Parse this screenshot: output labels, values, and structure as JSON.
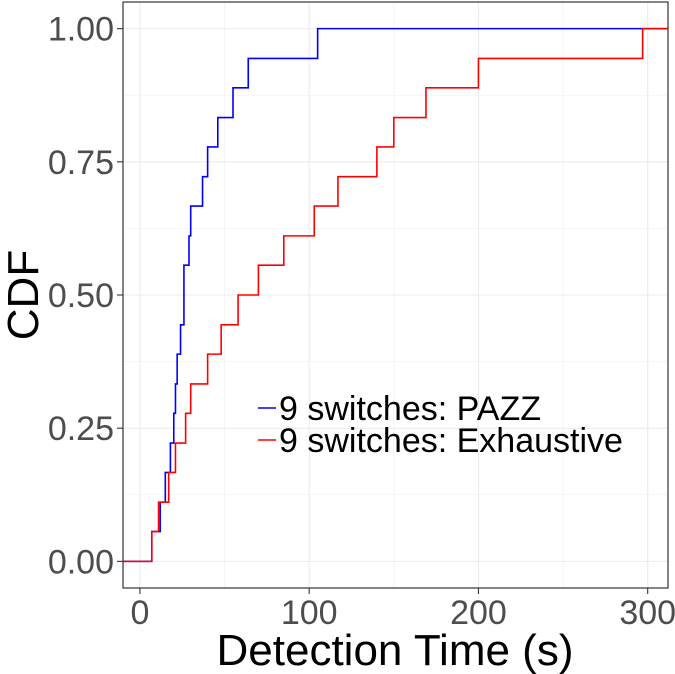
{
  "chart_data": {
    "type": "line",
    "subtype": "step-ecdf",
    "title": "",
    "xlabel": "Detection Time (s)",
    "ylabel": "CDF",
    "xlim": [
      -10,
      312
    ],
    "ylim": [
      -0.05,
      1.05
    ],
    "x_ticks": [
      0,
      100,
      200,
      300
    ],
    "x_tick_labels": [
      "0",
      "100",
      "200",
      "300"
    ],
    "y_ticks": [
      0,
      0.25,
      0.5,
      0.75,
      1.0
    ],
    "y_tick_labels": [
      "0.00",
      "0.25",
      "0.50",
      "0.75",
      "1.00"
    ],
    "grid": true,
    "legend_position": "bottom-right",
    "series": [
      {
        "name": "9 switches: PAZZ",
        "color": "#0000ff",
        "x": [
          7,
          12,
          15,
          18,
          20,
          21,
          22,
          24,
          26,
          29,
          30,
          33,
          37,
          40,
          43,
          46,
          55,
          59,
          64,
          105
        ],
        "y": [
          0.056,
          0.111,
          0.167,
          0.222,
          0.278,
          0.333,
          0.389,
          0.444,
          0.556,
          0.611,
          0.667,
          0.667,
          0.722,
          0.778,
          0.778,
          0.833,
          0.889,
          0.889,
          0.944,
          1.0
        ]
      },
      {
        "name": "9 switches: Exhaustive",
        "color": "#ff0000",
        "x": [
          7,
          11,
          17,
          21,
          27,
          30,
          40,
          48,
          58,
          70,
          85,
          103,
          117,
          140,
          150,
          169,
          200,
          297
        ],
        "y": [
          0.056,
          0.111,
          0.167,
          0.222,
          0.278,
          0.333,
          0.389,
          0.444,
          0.5,
          0.556,
          0.611,
          0.667,
          0.722,
          0.778,
          0.833,
          0.889,
          0.944,
          1.0
        ]
      }
    ]
  }
}
